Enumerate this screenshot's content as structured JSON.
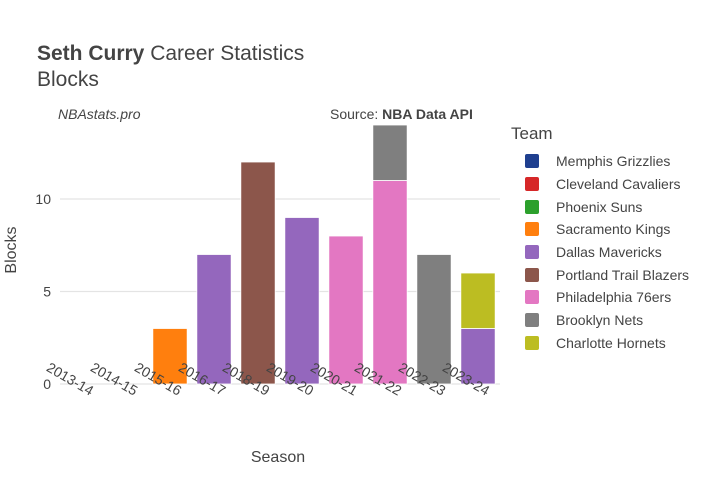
{
  "header": {
    "player": "Seth Curry",
    "subtitle_rest": "Career Statistics",
    "stat": "Blocks"
  },
  "watermark": "NBAstats.pro",
  "source": {
    "prefix": "Source: ",
    "name": "NBA Data API"
  },
  "legend": {
    "title": "Team",
    "items": [
      {
        "label": "Memphis Grizzlies",
        "color": "#1f3f8f"
      },
      {
        "label": "Cleveland Cavaliers",
        "color": "#d62728"
      },
      {
        "label": "Phoenix Suns",
        "color": "#2ca02c"
      },
      {
        "label": "Sacramento Kings",
        "color": "#ff7f0e"
      },
      {
        "label": "Dallas Mavericks",
        "color": "#9467bd"
      },
      {
        "label": "Portland Trail Blazers",
        "color": "#8c564b"
      },
      {
        "label": "Philadelphia 76ers",
        "color": "#e377c2"
      },
      {
        "label": "Brooklyn Nets",
        "color": "#7f7f7f"
      },
      {
        "label": "Charlotte Hornets",
        "color": "#bcbd22"
      }
    ]
  },
  "chart_data": {
    "type": "bar",
    "stacked": true,
    "xlabel": "Season",
    "ylabel": "Blocks",
    "ylim": [
      0,
      14
    ],
    "yticks": [
      0,
      5,
      10
    ],
    "grid": true,
    "legend_position": "right",
    "categories": [
      "2013-14",
      "2014-15",
      "2015-16",
      "2016-17",
      "2018-19",
      "2019-20",
      "2020-21",
      "2021-22",
      "2022-23",
      "2023-24"
    ],
    "series": [
      {
        "name": "Memphis Grizzlies",
        "color": "#1f3f8f",
        "values": [
          0,
          0,
          0,
          0,
          0,
          0,
          0,
          0,
          0,
          0
        ]
      },
      {
        "name": "Cleveland Cavaliers",
        "color": "#d62728",
        "values": [
          0,
          0,
          0,
          0,
          0,
          0,
          0,
          0,
          0,
          0
        ]
      },
      {
        "name": "Phoenix Suns",
        "color": "#2ca02c",
        "values": [
          0,
          0,
          0,
          0,
          0,
          0,
          0,
          0,
          0,
          0
        ]
      },
      {
        "name": "Sacramento Kings",
        "color": "#ff7f0e",
        "values": [
          0,
          0,
          3,
          0,
          0,
          0,
          0,
          0,
          0,
          0
        ]
      },
      {
        "name": "Dallas Mavericks",
        "color": "#9467bd",
        "values": [
          0,
          0,
          0,
          7,
          0,
          9,
          0,
          0,
          0,
          3
        ]
      },
      {
        "name": "Portland Trail Blazers",
        "color": "#8c564b",
        "values": [
          0,
          0,
          0,
          0,
          12,
          0,
          0,
          0,
          0,
          0
        ]
      },
      {
        "name": "Philadelphia 76ers",
        "color": "#e377c2",
        "values": [
          0,
          0,
          0,
          0,
          0,
          0,
          8,
          11,
          0,
          0
        ]
      },
      {
        "name": "Brooklyn Nets",
        "color": "#7f7f7f",
        "values": [
          0,
          0,
          0,
          0,
          0,
          0,
          0,
          3,
          7,
          0
        ]
      },
      {
        "name": "Charlotte Hornets",
        "color": "#bcbd22",
        "values": [
          0,
          0,
          0,
          0,
          0,
          0,
          0,
          0,
          0,
          3
        ]
      }
    ]
  }
}
